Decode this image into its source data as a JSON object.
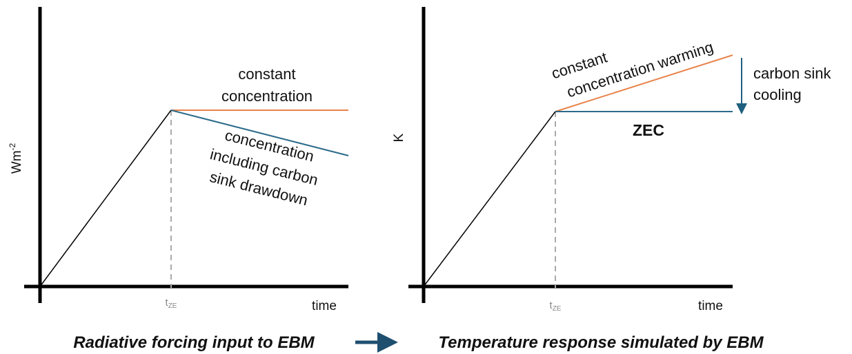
{
  "left_panel": {
    "y_label": {
      "base": "Wm",
      "sup": "-2"
    },
    "x_label": "time",
    "tick": {
      "base": "t",
      "sub": "ZE"
    },
    "annotations": {
      "constant": [
        "constant",
        "concentration"
      ],
      "drawdown": [
        "concentration",
        "including carbon",
        "sink drawdown"
      ]
    },
    "caption": "Radiative forcing input to EBM"
  },
  "right_panel": {
    "y_label": "K",
    "x_label": "time",
    "tick": {
      "base": "t",
      "sub": "ZE"
    },
    "annotations": {
      "warming": [
        "constant",
        "concentration warming"
      ],
      "cooling": [
        "carbon sink",
        "cooling"
      ],
      "zec": "ZEC"
    },
    "caption": "Temperature response simulated by EBM"
  }
}
